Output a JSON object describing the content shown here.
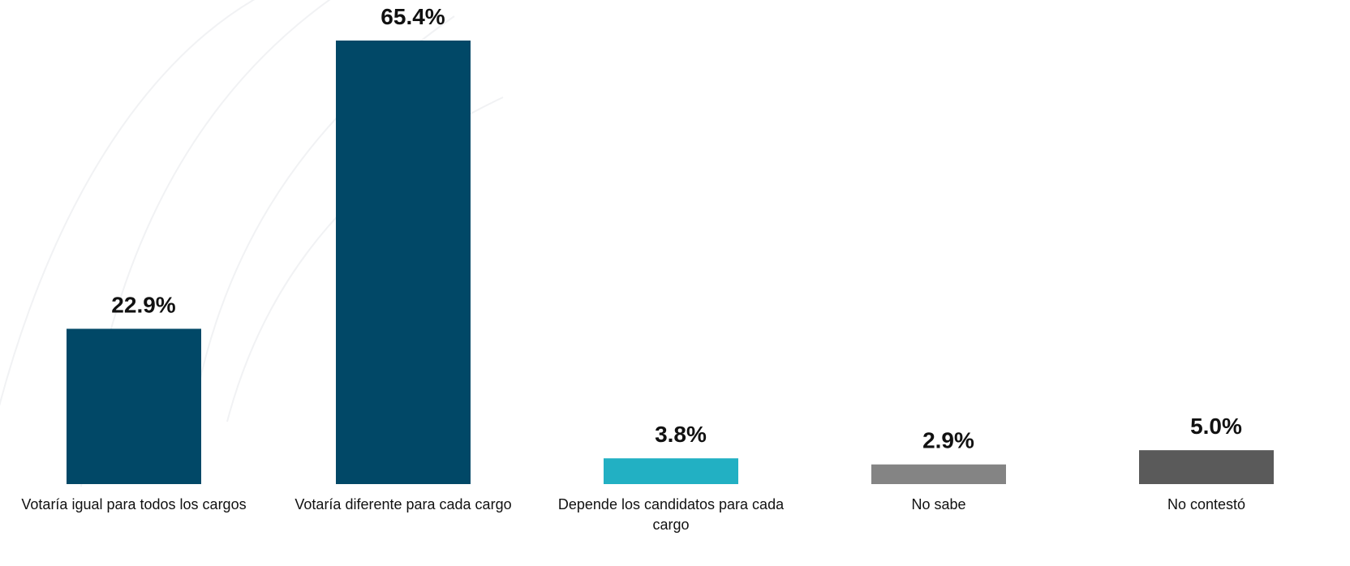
{
  "chart_data": {
    "type": "bar",
    "categories": [
      [
        "Votaría igual para todos los cargos"
      ],
      [
        "Votaría diferente para cada cargo"
      ],
      [
        "Depende los candidatos para cada",
        "cargo"
      ],
      [
        "No sabe"
      ],
      [
        "No contestó"
      ]
    ],
    "values": [
      22.9,
      65.4,
      3.8,
      2.9,
      5.0
    ],
    "value_labels": [
      "22.9%",
      "65.4%",
      "3.8%",
      "2.9%",
      "5.0%"
    ],
    "colors": [
      "#014867",
      "#014867",
      "#22b0c3",
      "#848484",
      "#5a5a5a"
    ],
    "ylim": [
      0,
      65.4
    ],
    "grid": false,
    "title": "",
    "xlabel": "",
    "ylabel": ""
  }
}
